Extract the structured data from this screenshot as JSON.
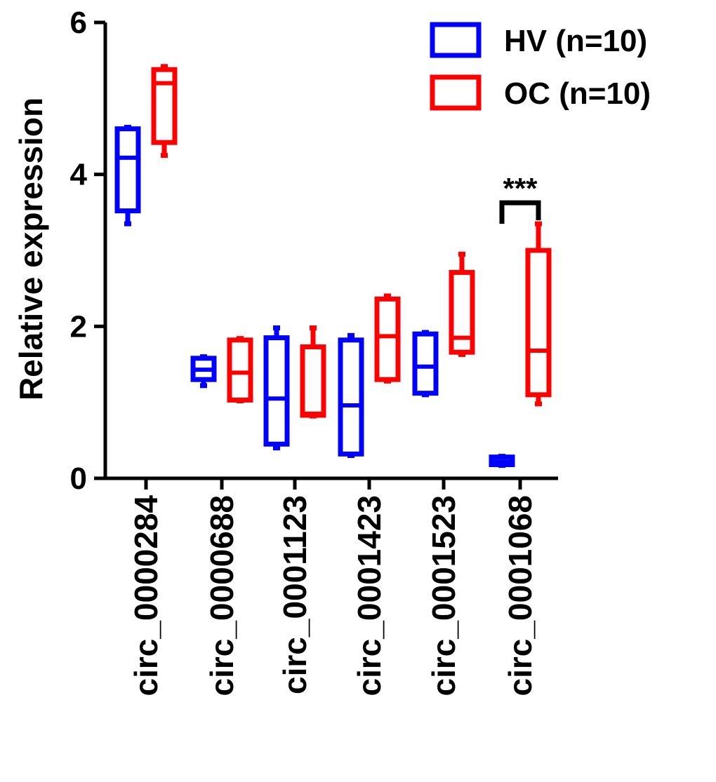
{
  "chart_data": {
    "type": "box",
    "ylabel": "Relative expression",
    "ylim": [
      0,
      6
    ],
    "yticks": [
      "0",
      "2",
      "4",
      "6"
    ],
    "categories": [
      "circ_0000284",
      "circ_0000688",
      "circ_0001123",
      "circ_0001423",
      "circ_0001523",
      "circ_0001068"
    ],
    "legend": {
      "position": "top-right"
    },
    "series": [
      {
        "name": "HV (n=10)",
        "color": "#0000ff",
        "boxes": [
          {
            "min": 3.35,
            "q1": 3.52,
            "median": 4.22,
            "q3": 4.6,
            "max": 4.62
          },
          {
            "min": 1.22,
            "q1": 1.3,
            "median": 1.43,
            "q3": 1.58,
            "max": 1.6
          },
          {
            "min": 0.4,
            "q1": 0.45,
            "median": 1.05,
            "q3": 1.85,
            "max": 1.98
          },
          {
            "min": 0.3,
            "q1": 0.32,
            "median": 0.96,
            "q3": 1.82,
            "max": 1.88
          },
          {
            "min": 1.1,
            "q1": 1.12,
            "median": 1.47,
            "q3": 1.9,
            "max": 1.92
          },
          {
            "min": 0.17,
            "q1": 0.18,
            "median": 0.22,
            "q3": 0.28,
            "max": 0.29
          }
        ]
      },
      {
        "name": "OC (n=10)",
        "color": "#ff0000",
        "boxes": [
          {
            "min": 4.25,
            "q1": 4.42,
            "median": 5.2,
            "q3": 5.38,
            "max": 5.42
          },
          {
            "min": 1.02,
            "q1": 1.03,
            "median": 1.39,
            "q3": 1.82,
            "max": 1.84
          },
          {
            "min": 0.82,
            "q1": 0.83,
            "median": 0.85,
            "q3": 1.73,
            "max": 1.98
          },
          {
            "min": 1.28,
            "q1": 1.3,
            "median": 1.87,
            "q3": 2.36,
            "max": 2.4
          },
          {
            "min": 1.63,
            "q1": 1.66,
            "median": 1.85,
            "q3": 2.71,
            "max": 2.95
          },
          {
            "min": 0.98,
            "q1": 1.1,
            "median": 1.68,
            "q3": 3.0,
            "max": 3.35
          }
        ]
      }
    ],
    "annotations": [
      {
        "text": "***",
        "category_index": 5
      }
    ]
  }
}
